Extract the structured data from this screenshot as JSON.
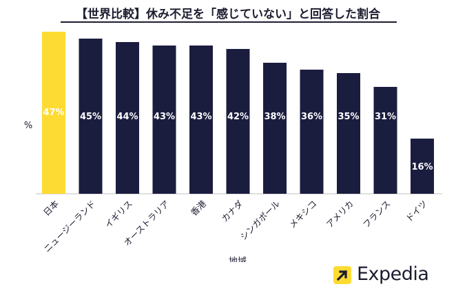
{
  "title": "【世界比較】休み不足を「感じていない」と回答した割合",
  "brand": {
    "name": "Expedia",
    "badge_color": "#fddb32",
    "icon": "arrow-up-right-icon"
  },
  "colors": {
    "highlight": "#fddb32",
    "bar": "#1b1d3f",
    "axis": "#bfbfbf"
  },
  "chart_data": {
    "type": "bar",
    "xlabel": "地域",
    "ylabel": "%",
    "categories": [
      "日本",
      "ニュージーランド",
      "イギリス",
      "オーストラリア",
      "香港",
      "カナダ",
      "シンガポール",
      "メキシコ",
      "アメリカ",
      "フランス",
      "ドイツ"
    ],
    "values": [
      47,
      45,
      44,
      43,
      43,
      42,
      38,
      36,
      35,
      31,
      16
    ],
    "value_labels": [
      "47%",
      "45%",
      "44%",
      "43%",
      "43%",
      "42%",
      "38%",
      "36%",
      "35%",
      "31%",
      "16%"
    ],
    "highlight_category": "日本",
    "ylim": [
      0,
      47
    ],
    "grid": false,
    "legend": "none"
  }
}
